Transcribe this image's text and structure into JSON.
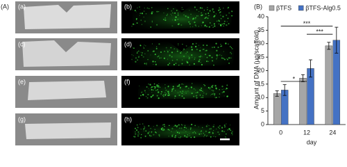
{
  "figure": {
    "panel_labels": [
      "(A)",
      "(B)"
    ],
    "image_labels": [
      "(a)",
      "(b)",
      "(c)",
      "(d)",
      "(e)",
      "(f)",
      "(g)",
      "(h)"
    ]
  },
  "chart_data": {
    "type": "bar",
    "x_label": "day",
    "y_label": "Amount of DNA  (μg/scaffold)",
    "categories": [
      "0",
      "12",
      "24"
    ],
    "series": [
      {
        "name": "βTFS",
        "color": "#a6a6a6",
        "values": [
          11.5,
          17.2,
          29.2
        ],
        "errors": [
          1.0,
          1.3,
          1.3
        ]
      },
      {
        "name": "βTFS-Alg0.5",
        "color": "#4472c4",
        "values": [
          12.8,
          20.8,
          31.3
        ],
        "errors": [
          2.0,
          3.2,
          4.8
        ]
      }
    ],
    "ylim": [
      0,
      40
    ],
    "yticks": [
      0,
      5,
      10,
      15,
      20,
      25,
      30,
      35,
      40
    ],
    "annotations": [
      {
        "text": "*",
        "from": 0,
        "to": 1,
        "y": 16
      },
      {
        "text": "***",
        "from": 1,
        "to": 2,
        "y": 33.5
      },
      {
        "text": "***",
        "from": 0,
        "to": 2,
        "y": 36.5
      }
    ],
    "legend": "top"
  }
}
